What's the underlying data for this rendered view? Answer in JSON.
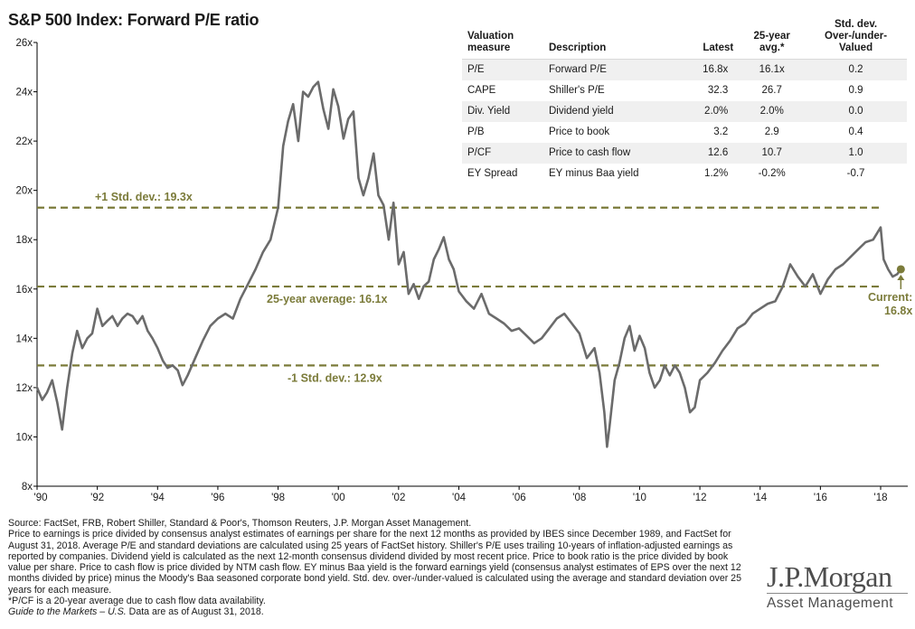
{
  "chart_data": {
    "type": "line",
    "title": "S&P 500 Index: Forward P/E ratio",
    "y_ticks": [
      "26x",
      "24x",
      "22x",
      "20x",
      "18x",
      "16x",
      "14x",
      "12x",
      "10x",
      "8x"
    ],
    "x_ticks": [
      "'90",
      "'92",
      "'94",
      "'96",
      "'98",
      "'00",
      "'02",
      "'04",
      "'06",
      "'08",
      "'10",
      "'12",
      "'14",
      "'16",
      "'18"
    ],
    "ylim": [
      8,
      26
    ],
    "xlim": [
      1990.0,
      2018.9
    ],
    "grid": false,
    "series": [
      {
        "color": "#6b6b6b",
        "x": [
          1990.0,
          1990.17,
          1990.33,
          1990.5,
          1990.67,
          1990.83,
          1991.0,
          1991.17,
          1991.33,
          1991.5,
          1991.67,
          1991.83,
          1992.0,
          1992.17,
          1992.33,
          1992.5,
          1992.67,
          1992.83,
          1993.0,
          1993.17,
          1993.33,
          1993.5,
          1993.67,
          1993.83,
          1994.0,
          1994.17,
          1994.33,
          1994.5,
          1994.67,
          1994.83,
          1995.0,
          1995.25,
          1995.5,
          1995.75,
          1996.0,
          1996.25,
          1996.5,
          1996.75,
          1997.0,
          1997.25,
          1997.5,
          1997.75,
          1998.0,
          1998.17,
          1998.33,
          1998.5,
          1998.67,
          1998.83,
          1999.0,
          1999.17,
          1999.33,
          1999.5,
          1999.67,
          1999.83,
          2000.0,
          2000.17,
          2000.33,
          2000.5,
          2000.67,
          2000.83,
          2001.0,
          2001.17,
          2001.33,
          2001.5,
          2001.67,
          2001.83,
          2002.0,
          2002.17,
          2002.33,
          2002.5,
          2002.67,
          2002.83,
          2003.0,
          2003.17,
          2003.33,
          2003.5,
          2003.67,
          2003.83,
          2004.0,
          2004.25,
          2004.5,
          2004.75,
          2005.0,
          2005.25,
          2005.5,
          2005.75,
          2006.0,
          2006.25,
          2006.5,
          2006.75,
          2007.0,
          2007.25,
          2007.5,
          2007.75,
          2008.0,
          2008.25,
          2008.5,
          2008.67,
          2008.83,
          2008.92,
          2009.0,
          2009.17,
          2009.33,
          2009.5,
          2009.67,
          2009.83,
          2010.0,
          2010.17,
          2010.33,
          2010.5,
          2010.67,
          2010.83,
          2011.0,
          2011.17,
          2011.33,
          2011.5,
          2011.67,
          2011.83,
          2012.0,
          2012.25,
          2012.5,
          2012.75,
          2013.0,
          2013.25,
          2013.5,
          2013.75,
          2014.0,
          2014.25,
          2014.5,
          2014.75,
          2015.0,
          2015.25,
          2015.5,
          2015.75,
          2016.0,
          2016.25,
          2016.5,
          2016.75,
          2017.0,
          2017.25,
          2017.5,
          2017.75,
          2018.0,
          2018.1,
          2018.25,
          2018.4,
          2018.55,
          2018.67
        ],
        "y": [
          12.0,
          11.5,
          11.8,
          12.3,
          11.4,
          10.3,
          12.0,
          13.4,
          14.3,
          13.6,
          14.0,
          14.2,
          15.2,
          14.5,
          14.7,
          14.9,
          14.5,
          14.8,
          15.0,
          14.9,
          14.6,
          14.9,
          14.3,
          14.0,
          13.6,
          13.1,
          12.8,
          12.9,
          12.7,
          12.1,
          12.5,
          13.2,
          13.9,
          14.5,
          14.8,
          15.0,
          14.8,
          15.6,
          16.2,
          16.8,
          17.5,
          18.0,
          19.3,
          21.8,
          22.8,
          23.5,
          22.0,
          24.0,
          23.8,
          24.2,
          24.4,
          23.3,
          22.5,
          24.1,
          23.4,
          22.1,
          22.9,
          23.2,
          20.5,
          19.8,
          20.5,
          21.5,
          19.8,
          19.4,
          18.0,
          19.5,
          17.0,
          17.5,
          15.8,
          16.2,
          15.6,
          16.1,
          16.3,
          17.2,
          17.6,
          18.1,
          17.2,
          16.8,
          15.9,
          15.5,
          15.2,
          15.8,
          15.0,
          14.8,
          14.6,
          14.3,
          14.4,
          14.1,
          13.8,
          14.0,
          14.4,
          14.8,
          15.0,
          14.6,
          14.2,
          13.2,
          13.6,
          12.6,
          11.0,
          9.6,
          10.4,
          12.3,
          13.0,
          14.0,
          14.5,
          13.5,
          14.1,
          13.6,
          12.6,
          12.0,
          12.3,
          12.9,
          12.5,
          12.9,
          12.6,
          12.0,
          11.0,
          11.2,
          12.3,
          12.6,
          13.0,
          13.5,
          13.9,
          14.4,
          14.6,
          15.0,
          15.2,
          15.4,
          15.5,
          16.1,
          17.0,
          16.5,
          16.1,
          16.6,
          15.8,
          16.4,
          16.8,
          17.0,
          17.3,
          17.6,
          17.9,
          18.0,
          18.5,
          17.2,
          16.8,
          16.5,
          16.6,
          16.8
        ]
      }
    ],
    "reference_lines": [
      {
        "label": "+1 Std. dev.: 19.3x",
        "value": 19.3
      },
      {
        "label": "25-year average: 16.1x",
        "value": 16.1
      },
      {
        "label": "-1 Std. dev.: 12.9x",
        "value": 12.9
      }
    ],
    "current": {
      "label_line1": "Current:",
      "label_line2": "16.8x",
      "value": 16.8,
      "date": 2018.67
    },
    "colors": {
      "series": "#6b6b6b",
      "reference": "#7b7b3a",
      "axis": "#000000"
    }
  },
  "table": {
    "headers": {
      "measure_line1": "Valuation",
      "measure_line2": "measure",
      "description": "Description",
      "latest": "Latest",
      "avg_line1": "25-year",
      "avg_line2": "avg.*",
      "std_line1": "Std. dev.",
      "std_line2": "Over-/under-",
      "std_line3": "Valued"
    },
    "rows": [
      {
        "measure": "P/E",
        "description": "Forward P/E",
        "latest": "16.8x",
        "avg": "16.1x",
        "std": "0.2"
      },
      {
        "measure": "CAPE",
        "description": "Shiller's P/E",
        "latest": "32.3",
        "avg": "26.7",
        "std": "0.9"
      },
      {
        "measure": "Div. Yield",
        "description": "Dividend yield",
        "latest": "2.0%",
        "avg": "2.0%",
        "std": "0.0"
      },
      {
        "measure": "P/B",
        "description": "Price to book",
        "latest": "3.2",
        "avg": "2.9",
        "std": "0.4"
      },
      {
        "measure": "P/CF",
        "description": "Price to cash flow",
        "latest": "12.6",
        "avg": "10.7",
        "std": "1.0"
      },
      {
        "measure": "EY Spread",
        "description": "EY minus Baa yield",
        "latest": "1.2%",
        "avg": "-0.2%",
        "std": "-0.7"
      }
    ]
  },
  "footnotes": {
    "source": "Source: FactSet, FRB, Robert Shiller, Standard & Poor's, Thomson Reuters, J.P. Morgan Asset Management.",
    "body": "Price to earnings is price divided by consensus analyst estimates of earnings per share for the next 12 months as provided by IBES since December 1989, and FactSet for August 31, 2018. Average P/E and standard deviations are calculated using 25 years of FactSet history. Shiller's P/E uses trailing 10-years of inflation-adjusted earnings as reported by companies. Dividend yield is calculated as the next 12-month consensus dividend divided by most recent price. Price to book ratio is the price divided by book value per share. Price to cash flow is price divided by NTM cash flow. EY minus Baa yield is the forward earnings yield (consensus analyst estimates of EPS over the next 12 months divided by price) minus the Moody's Baa seasoned corporate bond yield. Std. dev. over-/under-valued is calculated using the average and standard deviation over 25 years for each measure.",
    "pcf_note": "*P/CF is a 20-year average due to cash flow data availability.",
    "guide": "Guide to the Markets – U.S.",
    "data_as_of": "Data are as of August 31, 2018."
  },
  "logo": {
    "name": "J.P.Morgan",
    "sub": "Asset Management"
  }
}
